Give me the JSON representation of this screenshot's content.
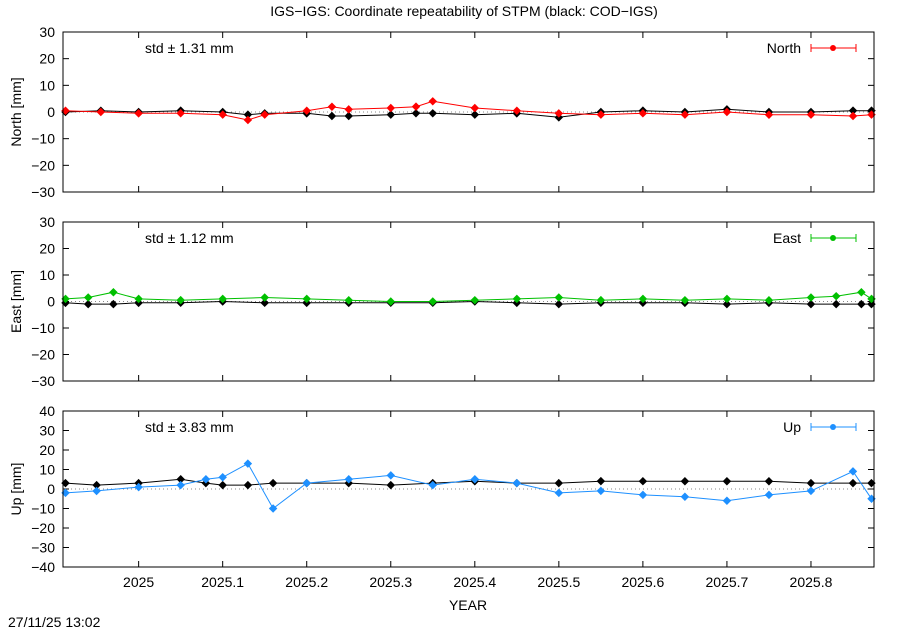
{
  "title": "IGS−IGS: Coordinate repeatability of STPM (black: COD−IGS)",
  "xlabel": "YEAR",
  "timestamp": "27/11/25 13:02",
  "colors": {
    "north": "#ff0000",
    "east": "#00c000",
    "up": "#1e90ff",
    "reference": "#000000"
  },
  "chart_data": [
    {
      "type": "line",
      "panel": "north",
      "ylabel": "North [mm]",
      "legend": "North",
      "legend_position": "top-right",
      "std_label": "std ± 1.31 mm",
      "ylim": [
        -30,
        30
      ],
      "yticks": [
        -30,
        -20,
        -10,
        0,
        10,
        20,
        30
      ],
      "ytick_labels": [
        "−30",
        "−20",
        "−10",
        "0",
        "10",
        "20",
        "30"
      ],
      "xlim": [
        2024.91,
        2025.875
      ],
      "xticks": [
        2025,
        2025.1,
        2025.2,
        2025.3,
        2025.4,
        2025.5,
        2025.6,
        2025.7,
        2025.8
      ],
      "xtick_labels": [
        "2025",
        "2025.1",
        "2025.2",
        "2025.3",
        "2025.4",
        "2025.5",
        "2025.6",
        "2025.7",
        "2025.8"
      ],
      "x": [
        2024.913,
        2024.955,
        2025.0,
        2025.05,
        2025.1,
        2025.13,
        2025.15,
        2025.2,
        2025.23,
        2025.25,
        2025.3,
        2025.33,
        2025.35,
        2025.4,
        2025.45,
        2025.5,
        2025.55,
        2025.6,
        2025.65,
        2025.7,
        2025.75,
        2025.8,
        2025.85,
        2025.872
      ],
      "series": [
        {
          "name": "North",
          "color": "#ff0000",
          "values": [
            0.5,
            0,
            -0.5,
            -0.5,
            -1,
            -3,
            -1,
            0.5,
            2,
            1,
            1.5,
            2,
            4,
            1.5,
            0.5,
            -0.5,
            -1,
            -0.5,
            -1,
            0,
            -1,
            -1,
            -1.5,
            -1
          ]
        },
        {
          "color": "#000000",
          "values": [
            0,
            0.5,
            0,
            0.5,
            0,
            -1,
            -0.5,
            -0.5,
            -1.5,
            -1.5,
            -1,
            -0.5,
            -0.5,
            -1,
            -0.5,
            -2,
            0,
            0.5,
            0,
            1,
            0,
            0,
            0.5,
            0.5
          ]
        }
      ]
    },
    {
      "type": "line",
      "panel": "east",
      "ylabel": "East [mm]",
      "legend": "East",
      "legend_position": "top-right",
      "std_label": "std ± 1.12 mm",
      "ylim": [
        -30,
        30
      ],
      "yticks": [
        -30,
        -20,
        -10,
        0,
        10,
        20,
        30
      ],
      "ytick_labels": [
        "−30",
        "−20",
        "−10",
        "0",
        "10",
        "20",
        "30"
      ],
      "xlim": [
        2024.91,
        2025.875
      ],
      "xticks": [
        2025,
        2025.1,
        2025.2,
        2025.3,
        2025.4,
        2025.5,
        2025.6,
        2025.7,
        2025.8
      ],
      "xtick_labels": [
        "2025",
        "2025.1",
        "2025.2",
        "2025.3",
        "2025.4",
        "2025.5",
        "2025.6",
        "2025.7",
        "2025.8"
      ],
      "x": [
        2024.913,
        2024.94,
        2024.97,
        2025.0,
        2025.05,
        2025.1,
        2025.15,
        2025.2,
        2025.25,
        2025.3,
        2025.35,
        2025.4,
        2025.45,
        2025.5,
        2025.55,
        2025.6,
        2025.65,
        2025.7,
        2025.75,
        2025.8,
        2025.83,
        2025.86,
        2025.872
      ],
      "series": [
        {
          "name": "East",
          "color": "#00c000",
          "values": [
            1,
            1.5,
            3.5,
            1,
            0.5,
            1,
            1.5,
            1,
            0.5,
            0,
            0,
            0.5,
            1,
            1.5,
            0.5,
            1,
            0.5,
            1,
            0.5,
            1.5,
            2,
            3.5,
            1
          ]
        },
        {
          "color": "#000000",
          "values": [
            -0.5,
            -1,
            -1,
            -0.5,
            -0.5,
            0,
            -0.5,
            -0.5,
            -0.5,
            -0.5,
            -0.5,
            0,
            -0.5,
            -1,
            -0.5,
            -0.5,
            -0.5,
            -1,
            -0.5,
            -1,
            -1,
            -1,
            -1
          ]
        }
      ]
    },
    {
      "type": "line",
      "panel": "up",
      "ylabel": "Up [mm]",
      "legend": "Up",
      "legend_position": "top-right",
      "std_label": "std ± 3.83 mm",
      "ylim": [
        -40,
        40
      ],
      "yticks": [
        -40,
        -30,
        -20,
        -10,
        0,
        10,
        20,
        30,
        40
      ],
      "ytick_labels": [
        "−40",
        "−30",
        "−20",
        "−10",
        "0",
        "10",
        "20",
        "30",
        "40"
      ],
      "xlim": [
        2024.91,
        2025.875
      ],
      "xticks": [
        2025,
        2025.1,
        2025.2,
        2025.3,
        2025.4,
        2025.5,
        2025.6,
        2025.7,
        2025.8
      ],
      "xtick_labels": [
        "2025",
        "2025.1",
        "2025.2",
        "2025.3",
        "2025.4",
        "2025.5",
        "2025.6",
        "2025.7",
        "2025.8"
      ],
      "x": [
        2024.913,
        2024.95,
        2025.0,
        2025.05,
        2025.08,
        2025.1,
        2025.13,
        2025.16,
        2025.2,
        2025.25,
        2025.3,
        2025.35,
        2025.4,
        2025.45,
        2025.5,
        2025.55,
        2025.6,
        2025.65,
        2025.7,
        2025.75,
        2025.8,
        2025.85,
        2025.872
      ],
      "series": [
        {
          "name": "Up",
          "color": "#1e90ff",
          "values": [
            -2,
            -1,
            1,
            2,
            5,
            6,
            13,
            -10,
            3,
            5,
            7,
            2,
            5,
            3,
            -2,
            -1,
            -3,
            -4,
            -6,
            -3,
            -1,
            9,
            -5
          ]
        },
        {
          "color": "#000000",
          "values": [
            3,
            2,
            3,
            5,
            3,
            2,
            2,
            3,
            3,
            3,
            2,
            3,
            4,
            3,
            3,
            4,
            4,
            4,
            4,
            4,
            3,
            3,
            3
          ]
        }
      ]
    }
  ]
}
